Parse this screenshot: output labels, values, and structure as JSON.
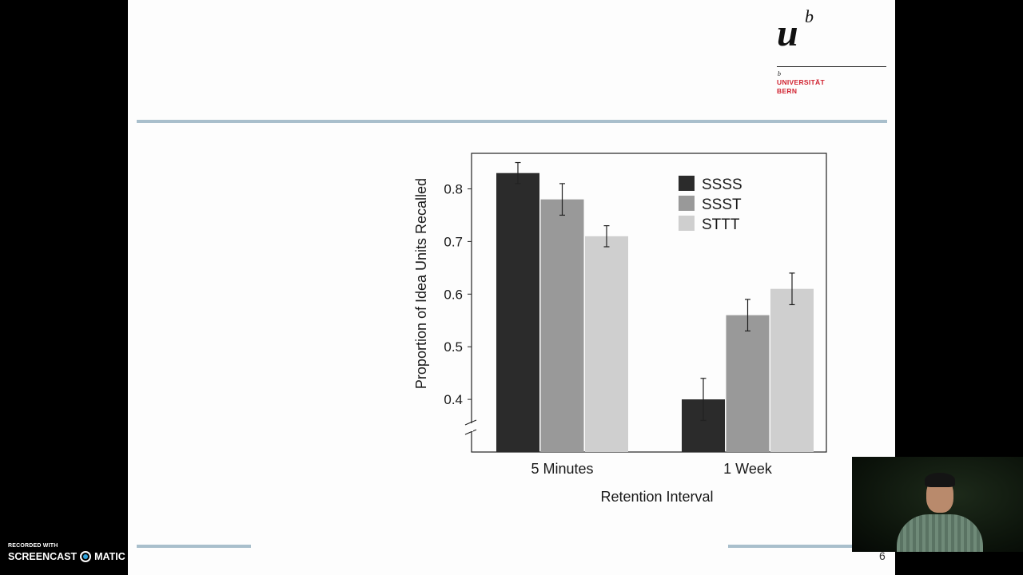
{
  "slide": {
    "page_number": "6",
    "logo": {
      "mark_u": "u",
      "mark_b": "b",
      "small_b": "b",
      "line1": "UNIVERSITÄT",
      "line2": "BERN"
    }
  },
  "watermark": {
    "small": "RECORDED WITH",
    "brand_left": "SCREENCAST",
    "brand_right": "MATIC"
  },
  "colors": {
    "SSSS": "#2b2b2b",
    "SSST": "#999999",
    "STTT": "#cfcfcf",
    "rule": "#a9bfcc",
    "logo_text": "#d0202e"
  },
  "chart_data": {
    "type": "bar",
    "categories": [
      "5 Minutes",
      "1 Week"
    ],
    "series": [
      {
        "name": "SSSS",
        "values": [
          0.83,
          0.4
        ],
        "errors": [
          0.02,
          0.04
        ]
      },
      {
        "name": "SSST",
        "values": [
          0.78,
          0.56
        ],
        "errors": [
          0.03,
          0.03
        ]
      },
      {
        "name": "STTT",
        "values": [
          0.71,
          0.61
        ],
        "errors": [
          0.02,
          0.03
        ]
      }
    ],
    "title": "",
    "xlabel": "Retention Interval",
    "ylabel": "Proportion of Idea Units Recalled",
    "ylim": [
      0.3,
      0.88
    ],
    "yticks": [
      "0.4",
      "0.5",
      "0.6",
      "0.7",
      "0.8"
    ],
    "axis_break": true,
    "grid": false,
    "legend_position": "top-right"
  }
}
